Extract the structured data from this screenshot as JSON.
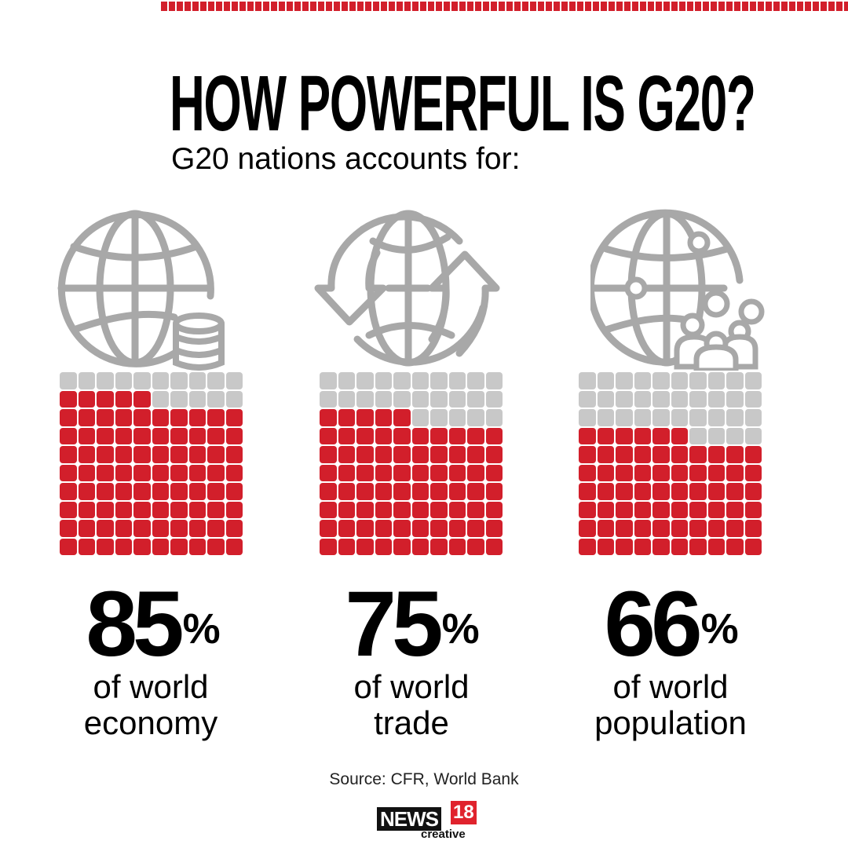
{
  "header": {
    "title": "HOW POWERFUL IS G20?",
    "subtitle": "G20 nations accounts for:"
  },
  "colors": {
    "accent": "#d21f2b",
    "inactive": "#c8c8c8",
    "icon": "#a8a8a8"
  },
  "stats": [
    {
      "icon": "globe-database-icon",
      "value": "85",
      "unit": "%",
      "line1": "of world",
      "line2": "economy"
    },
    {
      "icon": "globe-trade-arrows-icon",
      "value": "75",
      "unit": "%",
      "line1": "of world",
      "line2": "trade"
    },
    {
      "icon": "globe-people-icon",
      "value": "66",
      "unit": "%",
      "line1": "of world",
      "line2": "population"
    }
  ],
  "footer": {
    "source": "Source: CFR, World Bank",
    "logo_news": "NEWS",
    "logo_num": "18",
    "logo_sub": "creative"
  },
  "chart_data": {
    "type": "waffle",
    "title": "HOW POWERFUL IS G20?",
    "subtitle": "G20 nations accounts for:",
    "grid": [
      10,
      10
    ],
    "categories": [
      "of world economy",
      "of world trade",
      "of world population"
    ],
    "values": [
      85,
      75,
      66
    ],
    "unit": "%",
    "source": "Source: CFR, World Bank"
  }
}
